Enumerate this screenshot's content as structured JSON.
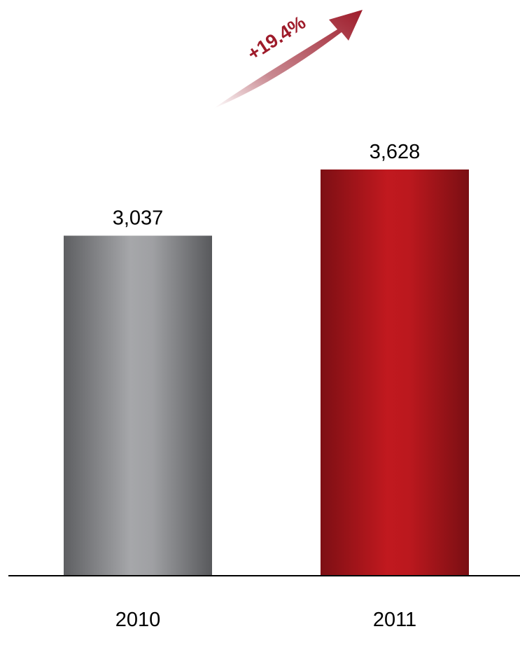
{
  "chart_data": {
    "type": "bar",
    "categories": [
      "2010",
      "2011"
    ],
    "values": [
      3037,
      3628
    ],
    "value_labels": [
      "3,037",
      "3,628"
    ],
    "bar_colors": [
      "#8c8d90",
      "#b51a1f"
    ],
    "title": "",
    "xlabel": "",
    "ylabel": "",
    "ylim": [
      0,
      4000
    ],
    "grid": false,
    "legend": "none",
    "annotation": {
      "text": "+19.4%",
      "color": "#9e1b2a",
      "arrow": "up-right"
    }
  }
}
